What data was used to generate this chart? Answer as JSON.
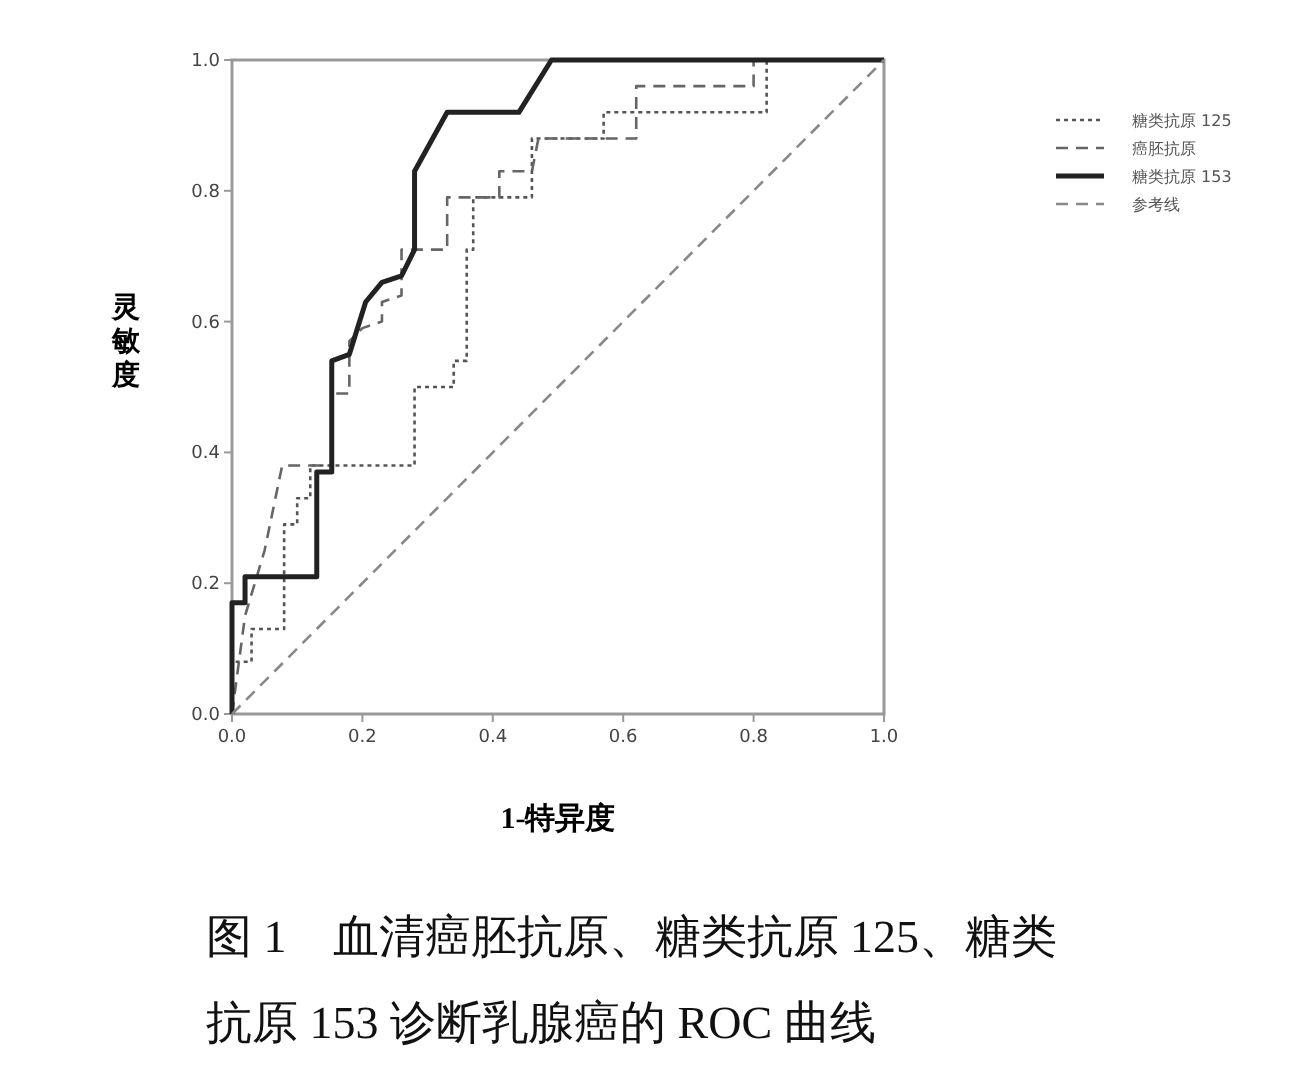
{
  "chart_data": {
    "type": "line",
    "title": "图 1　血清癌胚抗原、糖类抗原 125、糖类抗原 153 诊断乳腺癌的 ROC 曲线",
    "xlabel": "1-特异度",
    "ylabel": "灵敏度",
    "legend": "top right",
    "grid": false,
    "marker": "none",
    "xlim": [
      0,
      1
    ],
    "ylim": [
      0,
      1
    ],
    "xticks": [
      {
        "value": 0,
        "label": "0.0"
      },
      {
        "value": 0.2,
        "label": "0.2"
      },
      {
        "value": 0.4,
        "label": "0.4"
      },
      {
        "value": 0.6,
        "label": "0.6"
      },
      {
        "value": 0.8,
        "label": "0.8"
      },
      {
        "value": 1,
        "label": "1.0"
      }
    ],
    "yticks": [
      {
        "value": 0,
        "label": "0.0"
      },
      {
        "value": 0.2,
        "label": "0.2"
      },
      {
        "value": 0.4,
        "label": "0.4"
      },
      {
        "value": 0.6,
        "label": "0.6"
      },
      {
        "value": 0.8,
        "label": "0.8"
      },
      {
        "value": 1,
        "label": "1.0"
      }
    ],
    "series": [
      {
        "name": "糖类抗原 125",
        "color": "#555555",
        "line_style": "dotted",
        "x": [
          0,
          0,
          0.03,
          0.03,
          0.08,
          0.08,
          0.1,
          0.1,
          0.12,
          0.12,
          0.28,
          0.28,
          0.34,
          0.34,
          0.36,
          0.36,
          0.37,
          0.37,
          0.46,
          0.46,
          0.57,
          0.57,
          0.82,
          0.82,
          1
        ],
        "values": [
          0,
          0.08,
          0.08,
          0.13,
          0.13,
          0.29,
          0.29,
          0.33,
          0.33,
          0.38,
          0.38,
          0.5,
          0.5,
          0.54,
          0.54,
          0.71,
          0.71,
          0.79,
          0.79,
          0.88,
          0.88,
          0.92,
          0.92,
          1,
          1
        ]
      },
      {
        "name": "癌胚抗原",
        "color": "#666666",
        "line_style": "dashed",
        "x": [
          0,
          0.02,
          0.05,
          0.077,
          0.153,
          0.153,
          0.18,
          0.18,
          0.2,
          0.23,
          0.23,
          0.26,
          0.26,
          0.33,
          0.33,
          0.41,
          0.41,
          0.46,
          0.47,
          0.62,
          0.62,
          0.8,
          0.8,
          1
        ],
        "values": [
          0,
          0.15,
          0.25,
          0.38,
          0.38,
          0.49,
          0.49,
          0.57,
          0.59,
          0.6,
          0.63,
          0.64,
          0.71,
          0.71,
          0.79,
          0.79,
          0.83,
          0.83,
          0.88,
          0.88,
          0.96,
          0.96,
          1,
          1
        ]
      },
      {
        "name": "糖类抗原 153",
        "color": "#222222",
        "line_style": "solid",
        "x": [
          0,
          0,
          0.02,
          0.02,
          0.13,
          0.13,
          0.153,
          0.153,
          0.18,
          0.205,
          0.23,
          0.26,
          0.28,
          0.28,
          0.33,
          0.44,
          0.49,
          1
        ],
        "values": [
          0,
          0.17,
          0.17,
          0.21,
          0.21,
          0.37,
          0.37,
          0.54,
          0.55,
          0.63,
          0.66,
          0.67,
          0.71,
          0.83,
          0.92,
          0.92,
          1,
          1
        ]
      },
      {
        "name": "参考线",
        "color": "#888888",
        "line_style": "dashed",
        "x": [
          0,
          1
        ],
        "values": [
          0,
          1
        ]
      }
    ]
  }
}
